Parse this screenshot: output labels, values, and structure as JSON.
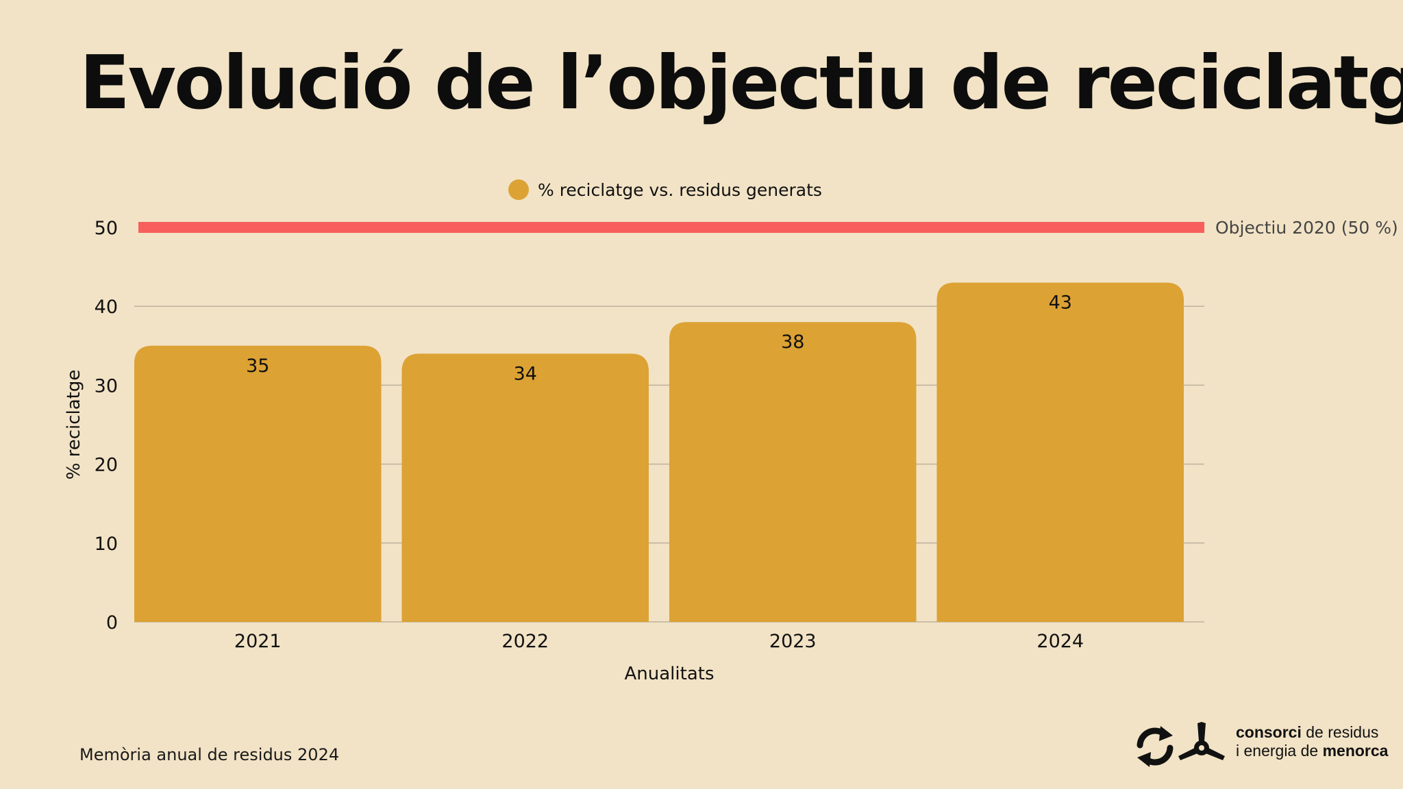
{
  "title": "Evolució de l’objectiu de reciclatge",
  "footer": {
    "note": "Memòria anual de residus 2024",
    "brand_line1_bold": "consorci",
    "brand_line1_rest": " de residus",
    "brand_line2_rest": "i energia de ",
    "brand_line2_bold": "menorca"
  },
  "chart_data": {
    "type": "bar",
    "categories": [
      "2021",
      "2022",
      "2023",
      "2024"
    ],
    "series": [
      {
        "name": "% reciclatge vs. residus generats",
        "values": [
          35,
          34,
          38,
          43
        ],
        "color": "#dca234"
      }
    ],
    "target": {
      "label": "Objectiu 2020 (50 %)",
      "value": 50,
      "color": "#f65f5c"
    },
    "xlabel": "Anualitats",
    "ylabel": "% reciclatge",
    "ylim": [
      0,
      50
    ],
    "yticks": [
      0,
      10,
      20,
      30,
      40,
      50
    ],
    "grid": true,
    "legend_position": "top-center"
  },
  "colors": {
    "background": "#f2e3c6",
    "bar": "#dca234",
    "target_line": "#f65f5c",
    "gridline": "#bdb29e"
  }
}
